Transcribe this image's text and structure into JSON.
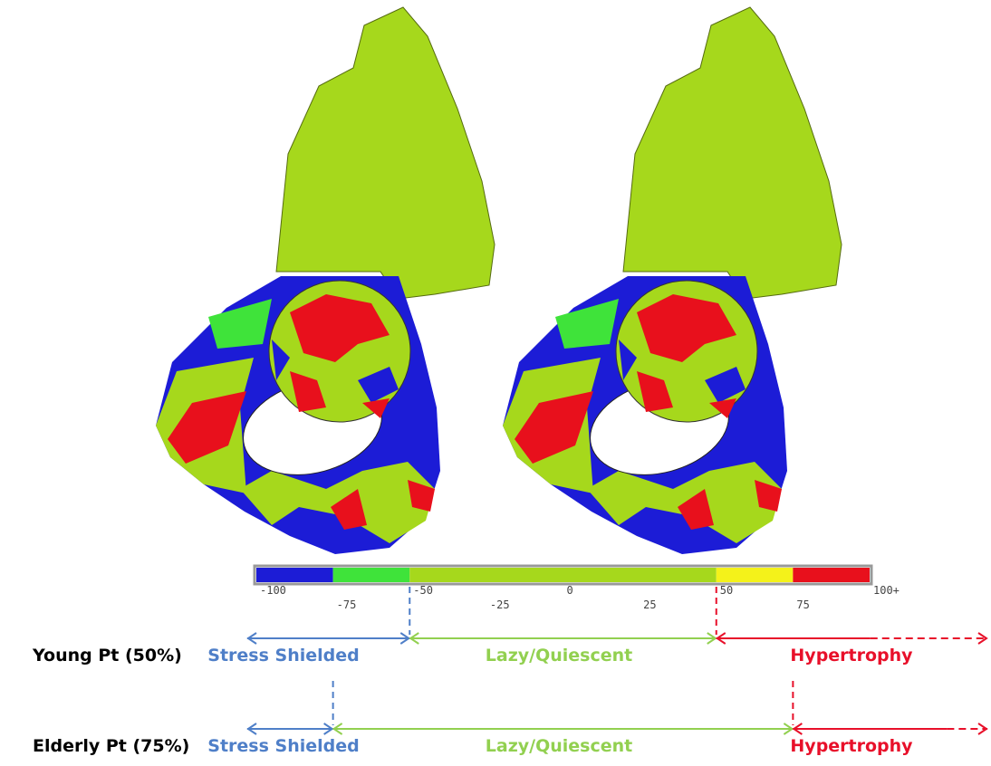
{
  "colorbar": {
    "range": [
      -100,
      100
    ],
    "ticks": [
      -100,
      -75,
      -50,
      -25,
      0,
      25,
      50,
      75,
      {
        "value": 100,
        "label": "100+"
      }
    ],
    "segments": [
      {
        "from": -100,
        "to": -75,
        "color": "#1c1cd6"
      },
      {
        "from": -75,
        "to": -50,
        "color": "#3fe33a"
      },
      {
        "from": -50,
        "to": 50,
        "color": "#a6d81c"
      },
      {
        "from": 50,
        "to": 75,
        "color": "#f4f21a"
      },
      {
        "from": 75,
        "to": 100,
        "color": "#e8101c"
      }
    ]
  },
  "zones": {
    "names": [
      "Stress Shielded",
      "Lazy/Quiescent",
      "Hypertrophy"
    ],
    "colors": [
      "#4f7fc8",
      "#92d050",
      "#e8102a"
    ]
  },
  "rows": [
    {
      "label": "Young Pt (50%)",
      "bounds": [
        -50,
        50
      ]
    },
    {
      "label": "Elderly Pt (75%)",
      "bounds": [
        -75,
        75
      ]
    }
  ]
}
